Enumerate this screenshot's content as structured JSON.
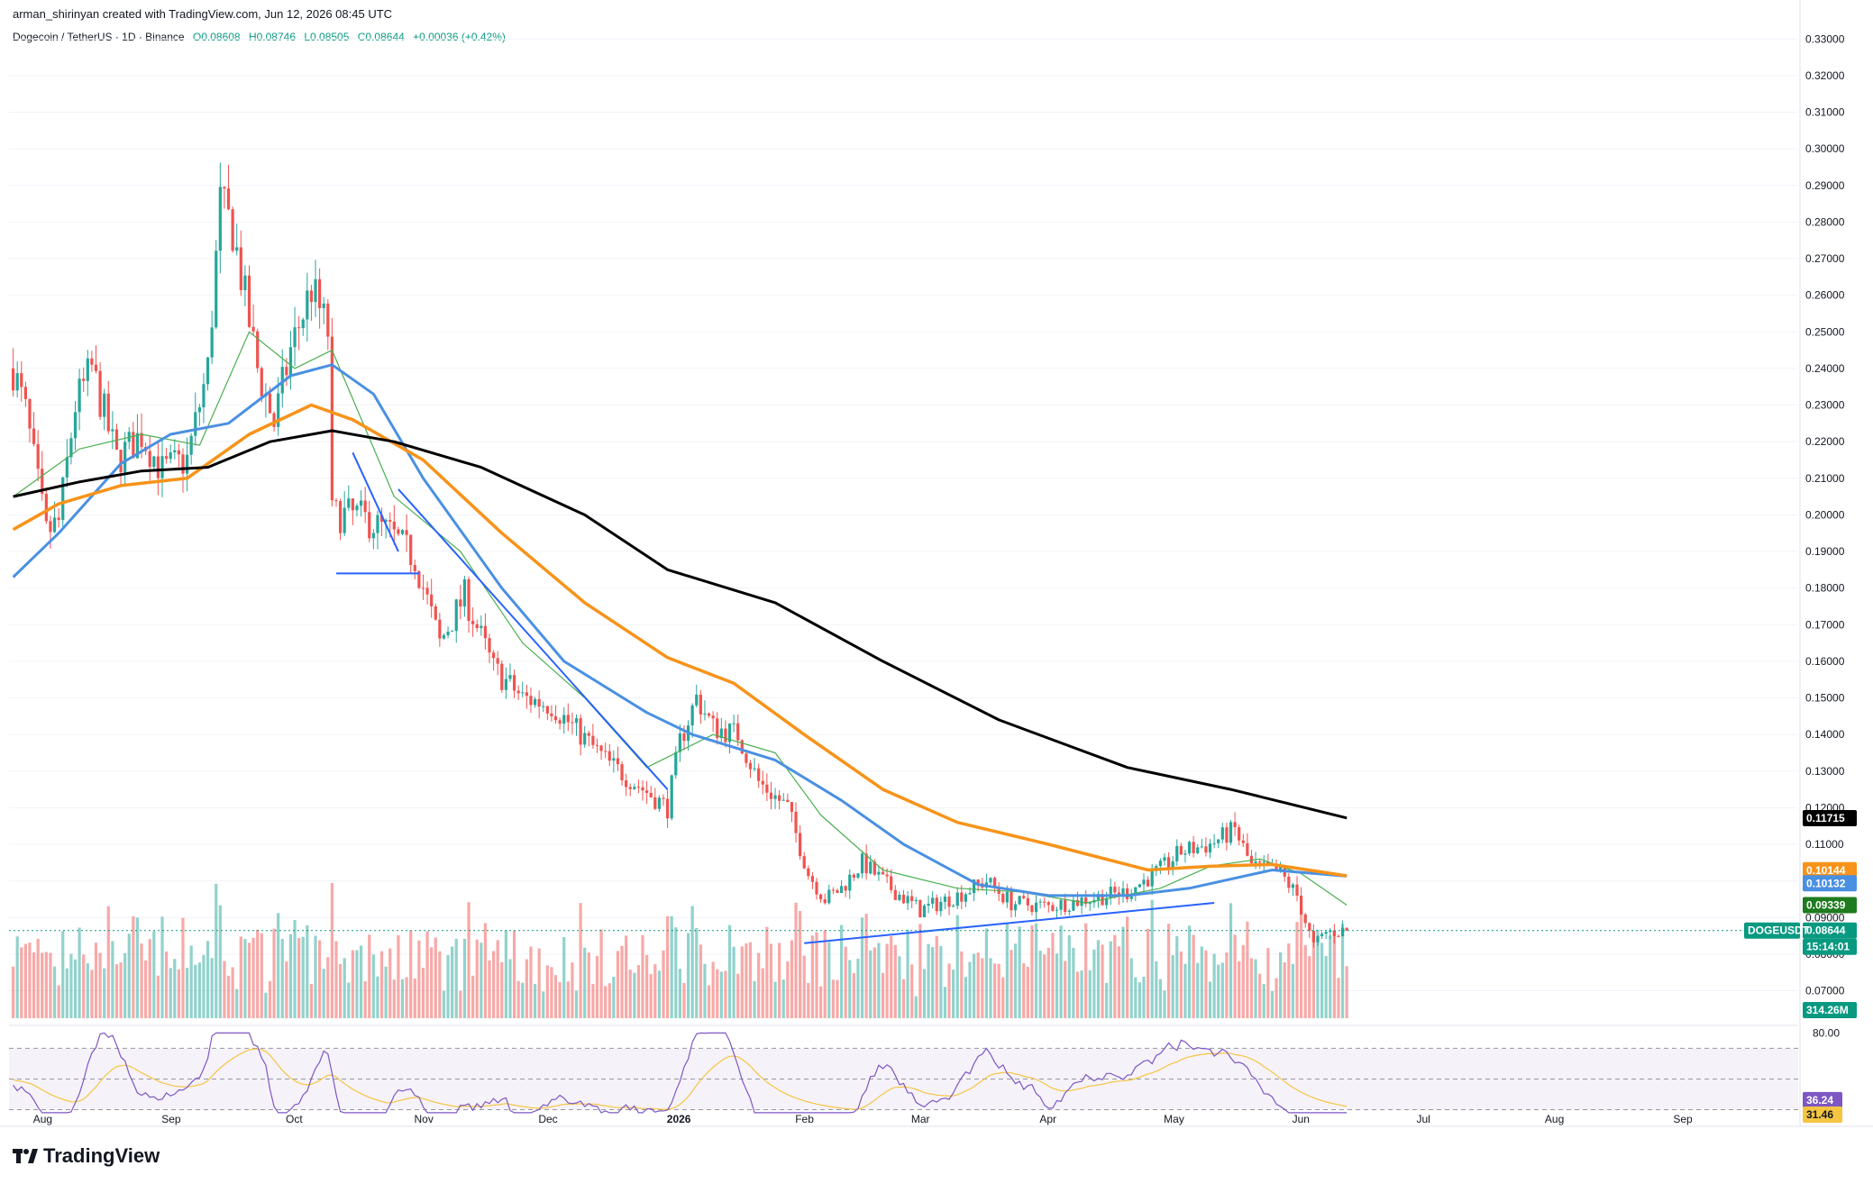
{
  "header": {
    "text": "arman_shirinyan created with TradingView.com, Jun 12, 2026 08:45 UTC"
  },
  "legend": {
    "symbol": "Dogecoin / TetherUS · 1D · Binance",
    "open": "O0.08608",
    "high": "H0.08746",
    "low": "L0.08505",
    "close": "C0.08644",
    "change": "+0.00036 (+0.42%)"
  },
  "footer": {
    "brand": "TradingView"
  },
  "colors": {
    "up": "#26a69a",
    "down": "#ef5350",
    "ma20": "#4caf50",
    "ma50": "#4a90e2",
    "ma100": "#f7931a",
    "ma200": "#000000",
    "trendline": "#2962ff",
    "rsi": "#7e57c2",
    "rsi_ma": "#f5c542"
  },
  "chart_data": [
    {
      "type": "candlestick",
      "title": "",
      "x_ticks": [
        "Aug",
        "Sep",
        "Oct",
        "Nov",
        "Dec",
        "2026",
        "Feb",
        "Mar",
        "Apr",
        "May",
        "Jun",
        "Jul",
        "Aug",
        "Sep"
      ],
      "y_ticks": [
        "0.33000",
        "0.32000",
        "0.31000",
        "0.30000",
        "0.29000",
        "0.28000",
        "0.27000",
        "0.26000",
        "0.25000",
        "0.24000",
        "0.23000",
        "0.22000",
        "0.21000",
        "0.20000",
        "0.19000",
        "0.18000",
        "0.17000",
        "0.16000",
        "0.15000",
        "0.14000",
        "0.13000",
        "0.12000",
        "0.11000",
        "0.10000",
        "0.09000",
        "0.08000",
        "0.07000"
      ],
      "ylim": [
        0.0625,
        0.3345
      ],
      "price_path": [
        [
          "2025-07-25",
          0.24
        ],
        [
          "2025-07-28",
          0.228
        ],
        [
          "2025-08-02",
          0.195
        ],
        [
          "2025-08-05",
          0.198
        ],
        [
          "2025-08-09",
          0.23
        ],
        [
          "2025-08-13",
          0.24
        ],
        [
          "2025-08-19",
          0.215
        ],
        [
          "2025-08-25",
          0.222
        ],
        [
          "2025-08-30",
          0.212
        ],
        [
          "2025-09-05",
          0.215
        ],
        [
          "2025-09-10",
          0.24
        ],
        [
          "2025-09-13",
          0.285
        ],
        [
          "2025-09-16",
          0.278
        ],
        [
          "2025-09-22",
          0.24
        ],
        [
          "2025-09-26",
          0.225
        ],
        [
          "2025-09-30",
          0.245
        ],
        [
          "2025-10-05",
          0.262
        ],
        [
          "2025-10-09",
          0.25
        ],
        [
          "2025-10-10",
          0.2
        ],
        [
          "2025-10-16",
          0.2
        ],
        [
          "2025-10-24",
          0.195
        ],
        [
          "2025-10-30",
          0.188
        ],
        [
          "2025-11-05",
          0.165
        ],
        [
          "2025-11-11",
          0.178
        ],
        [
          "2025-11-18",
          0.158
        ],
        [
          "2025-11-25",
          0.15
        ],
        [
          "2025-12-02",
          0.148
        ],
        [
          "2025-12-09",
          0.14
        ],
        [
          "2025-12-16",
          0.132
        ],
        [
          "2025-12-23",
          0.126
        ],
        [
          "2025-12-30",
          0.12
        ],
        [
          "2026-01-02",
          0.138
        ],
        [
          "2026-01-06",
          0.15
        ],
        [
          "2026-01-10",
          0.142
        ],
        [
          "2026-01-16",
          0.14
        ],
        [
          "2026-01-21",
          0.127
        ],
        [
          "2026-01-28",
          0.12
        ],
        [
          "2026-02-02",
          0.102
        ],
        [
          "2026-02-06",
          0.095
        ],
        [
          "2026-02-10",
          0.098
        ],
        [
          "2026-02-15",
          0.105
        ],
        [
          "2026-02-22",
          0.098
        ],
        [
          "2026-03-01",
          0.092
        ],
        [
          "2026-03-10",
          0.096
        ],
        [
          "2026-03-17",
          0.1
        ],
        [
          "2026-03-23",
          0.094
        ],
        [
          "2026-04-01",
          0.093
        ],
        [
          "2026-04-10",
          0.095
        ],
        [
          "2026-04-20",
          0.097
        ],
        [
          "2026-04-28",
          0.103
        ],
        [
          "2026-05-03",
          0.108
        ],
        [
          "2026-05-10",
          0.11
        ],
        [
          "2026-05-16",
          0.114
        ],
        [
          "2026-05-20",
          0.104
        ],
        [
          "2026-05-27",
          0.102
        ],
        [
          "2026-05-31",
          0.096
        ],
        [
          "2026-06-04",
          0.082
        ],
        [
          "2026-06-07",
          0.086
        ],
        [
          "2026-06-12",
          0.08644
        ]
      ],
      "series": [
        {
          "name": "",
          "kind": "ma20",
          "points": [
            [
              "2025-07-25",
              0.205
            ],
            [
              "2025-08-10",
              0.218
            ],
            [
              "2025-08-25",
              0.222
            ],
            [
              "2025-09-08",
              0.219
            ],
            [
              "2025-09-20",
              0.25
            ],
            [
              "2025-10-01",
              0.24
            ],
            [
              "2025-10-10",
              0.245
            ],
            [
              "2025-10-25",
              0.205
            ],
            [
              "2025-11-10",
              0.19
            ],
            [
              "2025-11-25",
              0.165
            ],
            [
              "2025-12-10",
              0.15
            ],
            [
              "2025-12-25",
              0.131
            ],
            [
              "2026-01-10",
              0.14
            ],
            [
              "2026-01-25",
              0.135
            ],
            [
              "2026-02-05",
              0.118
            ],
            [
              "2026-02-20",
              0.103
            ],
            [
              "2026-03-10",
              0.098
            ],
            [
              "2026-03-25",
              0.097
            ],
            [
              "2026-04-10",
              0.094
            ],
            [
              "2026-04-28",
              0.098
            ],
            [
              "2026-05-10",
              0.104
            ],
            [
              "2026-05-22",
              0.106
            ],
            [
              "2026-06-01",
              0.102
            ],
            [
              "2026-06-12",
              0.0934
            ]
          ]
        },
        {
          "name": "",
          "kind": "ma50",
          "points": [
            [
              "2025-07-25",
              0.183
            ],
            [
              "2025-08-05",
              0.195
            ],
            [
              "2025-08-20",
              0.214
            ],
            [
              "2025-09-01",
              0.222
            ],
            [
              "2025-09-15",
              0.225
            ],
            [
              "2025-09-30",
              0.238
            ],
            [
              "2025-10-10",
              0.241
            ],
            [
              "2025-10-20",
              0.233
            ],
            [
              "2025-11-01",
              0.21
            ],
            [
              "2025-11-20",
              0.18
            ],
            [
              "2025-12-05",
              0.16
            ],
            [
              "2025-12-25",
              0.146
            ],
            [
              "2026-01-05",
              0.14
            ],
            [
              "2026-01-25",
              0.133
            ],
            [
              "2026-02-10",
              0.122
            ],
            [
              "2026-02-25",
              0.11
            ],
            [
              "2026-03-15",
              0.099
            ],
            [
              "2026-04-01",
              0.096
            ],
            [
              "2026-04-20",
              0.096
            ],
            [
              "2026-05-05",
              0.098
            ],
            [
              "2026-05-25",
              0.103
            ],
            [
              "2026-06-12",
              0.1013
            ]
          ]
        },
        {
          "name": "",
          "kind": "ma100",
          "points": [
            [
              "2025-07-25",
              0.196
            ],
            [
              "2025-08-05",
              0.203
            ],
            [
              "2025-08-20",
              0.208
            ],
            [
              "2025-09-05",
              0.21
            ],
            [
              "2025-09-20",
              0.222
            ],
            [
              "2025-10-05",
              0.23
            ],
            [
              "2025-10-15",
              0.226
            ],
            [
              "2025-11-01",
              0.215
            ],
            [
              "2025-11-20",
              0.195
            ],
            [
              "2025-12-10",
              0.176
            ],
            [
              "2025-12-30",
              0.161
            ],
            [
              "2026-01-15",
              0.154
            ],
            [
              "2026-02-01",
              0.14
            ],
            [
              "2026-02-20",
              0.125
            ],
            [
              "2026-03-10",
              0.116
            ],
            [
              "2026-04-01",
              0.11
            ],
            [
              "2026-04-25",
              0.103
            ],
            [
              "2026-05-10",
              0.104
            ],
            [
              "2026-05-25",
              0.1045
            ],
            [
              "2026-06-12",
              0.1014
            ]
          ]
        },
        {
          "name": "",
          "kind": "ma200",
          "points": [
            [
              "2025-07-25",
              0.205
            ],
            [
              "2025-08-10",
              0.209
            ],
            [
              "2025-08-25",
              0.212
            ],
            [
              "2025-09-10",
              0.213
            ],
            [
              "2025-09-25",
              0.22
            ],
            [
              "2025-10-10",
              0.223
            ],
            [
              "2025-10-25",
              0.22
            ],
            [
              "2025-11-15",
              0.213
            ],
            [
              "2025-12-10",
              0.2
            ],
            [
              "2025-12-30",
              0.185
            ],
            [
              "2026-01-25",
              0.176
            ],
            [
              "2026-02-20",
              0.16
            ],
            [
              "2026-03-20",
              0.144
            ],
            [
              "2026-04-20",
              0.131
            ],
            [
              "2026-05-15",
              0.125
            ],
            [
              "2026-06-12",
              0.1172
            ]
          ]
        }
      ],
      "trendlines": [
        [
          [
            "2025-10-15",
            0.217
          ],
          [
            "2025-10-26",
            0.19
          ]
        ],
        [
          [
            "2025-10-11",
            0.184
          ],
          [
            "2025-10-31",
            0.184
          ]
        ],
        [
          [
            "2025-10-26",
            0.207
          ],
          [
            "2025-12-30",
            0.125
          ]
        ],
        [
          [
            "2026-02-01",
            0.083
          ],
          [
            "2026-05-11",
            0.094
          ]
        ]
      ],
      "price_labels": [
        {
          "text": "0.11715",
          "value": 0.11715,
          "color": "#000000"
        },
        {
          "text": "0.10144",
          "value": 0.10144,
          "color": "#f7931a"
        },
        {
          "text": "0.10132",
          "value": 0.10132,
          "color": "#4a90e2"
        },
        {
          "text": "0.09339",
          "value": 0.09339,
          "color": "#1e7b1e"
        },
        {
          "text": "0.08644",
          "value": 0.08644,
          "color": "#089981"
        }
      ],
      "last_symbol_label": "DOGEUSDT",
      "countdown_label": "15:14:01",
      "volume_label": "314.26M"
    },
    {
      "type": "line",
      "title": "",
      "y_ticks": [
        "80.00"
      ],
      "ylim": [
        25,
        82
      ],
      "band": [
        30,
        70
      ],
      "rsi_label": "36.24",
      "rsi_ma_label": "31.46"
    }
  ]
}
